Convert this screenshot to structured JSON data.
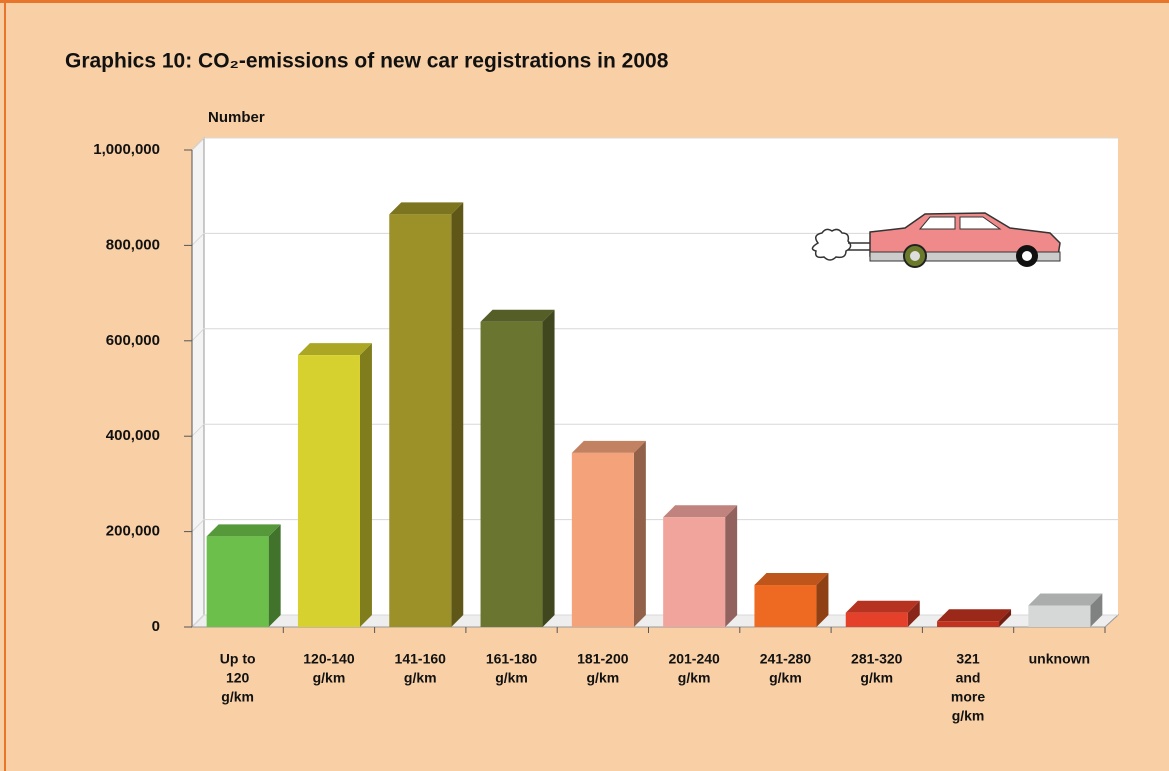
{
  "chart_data": {
    "type": "bar3d",
    "title": "Graphics 10:  CO₂-emissions of new car registrations in 2008",
    "y_label": "Number",
    "categories": [
      [
        "Up to",
        "120",
        "g/km"
      ],
      [
        "120-140",
        "g/km"
      ],
      [
        "141-160",
        "g/km"
      ],
      [
        "161-180",
        "g/km"
      ],
      [
        "181-200",
        "g/km"
      ],
      [
        "201-240",
        "g/km"
      ],
      [
        "241-280",
        "g/km"
      ],
      [
        "281-320",
        "g/km"
      ],
      [
        "321",
        "and",
        "more",
        "g/km"
      ],
      [
        "unknown"
      ]
    ],
    "values": [
      190000,
      570000,
      865000,
      640000,
      365000,
      230000,
      88000,
      30000,
      12000,
      45000
    ],
    "colors": [
      "#6cbf4a",
      "#d6d12e",
      "#9c9128",
      "#6a7530",
      "#f3a27a",
      "#f1a49c",
      "#ee6a22",
      "#e4402a",
      "#c2331f",
      "#d6d8d8"
    ],
    "ylim": [
      0,
      1000000
    ],
    "yticks": [
      0,
      {
        "value": 200000,
        "label": "200,000"
      },
      {
        "value": 400000,
        "label": "400,000"
      },
      {
        "value": 600000,
        "label": "600,000"
      },
      {
        "value": 800000,
        "label": "800,000"
      },
      {
        "value": 1000000,
        "label": "1,000,000"
      }
    ],
    "grid": true
  }
}
